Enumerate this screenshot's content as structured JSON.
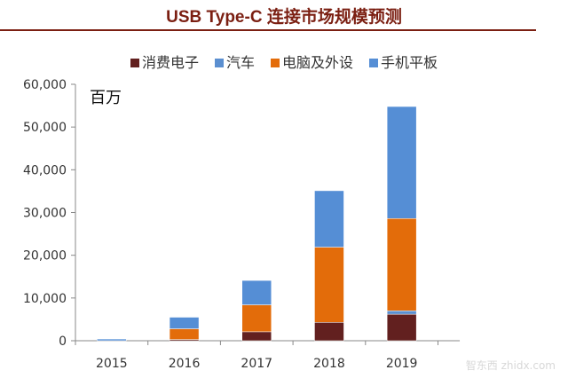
{
  "chart_data": {
    "type": "stacked-bar",
    "title": "USB Type-C 连接市场规模预测",
    "unit_label": "百万",
    "categories": [
      "2015",
      "2016",
      "2017",
      "2018",
      "2019"
    ],
    "series": [
      {
        "name": "消费电子",
        "color": "#62201f",
        "values": [
          0,
          300,
          2100,
          4300,
          6200
        ]
      },
      {
        "name": "汽车",
        "color": "#5b8fd0",
        "values": [
          0,
          0,
          0,
          0,
          800
        ]
      },
      {
        "name": "电脑及外设",
        "color": "#e36c0a",
        "values": [
          0,
          2500,
          6300,
          17600,
          21600
        ]
      },
      {
        "name": "手机平板",
        "color": "#558ed5",
        "values": [
          400,
          2700,
          5700,
          13200,
          26200
        ]
      }
    ],
    "ylim": [
      0,
      60000
    ],
    "yticks": [
      0,
      10000,
      20000,
      30000,
      40000,
      50000,
      60000
    ],
    "ytick_labels": [
      "0",
      "10,000",
      "20,000",
      "30,000",
      "40,000",
      "50,000",
      "60,000"
    ],
    "grid": false,
    "legend": "top"
  },
  "watermark": "智东西 zhidx.com"
}
